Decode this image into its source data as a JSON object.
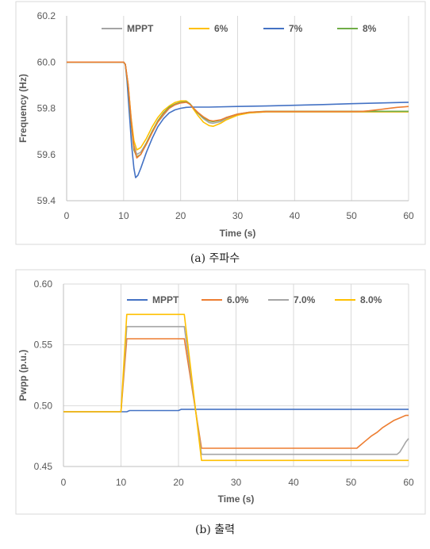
{
  "chart_data": [
    {
      "type": "line",
      "caption": "(a) 주파수",
      "xlabel": "Time (s)",
      "ylabel": "Frequency (Hz)",
      "xlim": [
        0,
        60
      ],
      "ylim": [
        59.4,
        60.2
      ],
      "xticks": [
        0,
        10,
        20,
        30,
        40,
        50,
        60
      ],
      "yticks": [
        "59.4",
        "59.6",
        "59.8",
        "60.0",
        "60.2"
      ],
      "grid": "vertical",
      "legend_position": "top",
      "series": [
        {
          "name": "MPPT",
          "color": "#a5a5a5",
          "x": [
            0,
            10,
            10.3,
            10.8,
            11.3,
            11.8,
            12.3,
            13,
            14,
            15,
            16,
            17,
            18,
            19,
            20,
            21,
            21.6,
            22.3,
            23,
            24,
            25,
            25.7,
            27,
            28,
            30,
            32,
            35,
            40,
            45,
            50,
            55,
            60
          ],
          "y": [
            60,
            60,
            59.99,
            59.9,
            59.76,
            59.64,
            59.6,
            59.61,
            59.65,
            59.7,
            59.74,
            59.77,
            59.8,
            59.815,
            59.825,
            59.828,
            59.82,
            59.8,
            59.78,
            59.755,
            59.738,
            59.735,
            59.742,
            59.755,
            59.772,
            59.78,
            59.785,
            59.785,
            59.785,
            59.785,
            59.785,
            59.785
          ]
        },
        {
          "name": "6%",
          "color": "#ffc000",
          "x": [
            0,
            10,
            10.3,
            10.8,
            11.3,
            11.8,
            12.3,
            13,
            14,
            15,
            16,
            17,
            18,
            19,
            20,
            21,
            21.6,
            22.3,
            23,
            24,
            25,
            25.7,
            27,
            28,
            30,
            32,
            35,
            40,
            45,
            50,
            55,
            60
          ],
          "y": [
            60,
            60,
            59.99,
            59.9,
            59.76,
            59.66,
            59.62,
            59.63,
            59.67,
            59.72,
            59.76,
            59.79,
            59.81,
            59.825,
            59.832,
            59.832,
            59.82,
            59.795,
            59.77,
            59.74,
            59.725,
            59.722,
            59.735,
            59.75,
            59.77,
            59.78,
            59.785,
            59.785,
            59.785,
            59.785,
            59.785,
            59.785
          ]
        },
        {
          "name": "7%",
          "color": "#4472c4",
          "x": [
            0,
            10,
            10.3,
            10.6,
            11,
            11.4,
            11.8,
            12.1,
            12.5,
            13,
            14,
            15,
            16,
            17,
            18,
            19,
            20,
            21,
            22,
            23,
            25,
            30,
            35,
            40,
            45,
            50,
            55,
            60
          ],
          "y": [
            60,
            60,
            59.99,
            59.92,
            59.78,
            59.64,
            59.54,
            59.5,
            59.51,
            59.54,
            59.61,
            59.67,
            59.72,
            59.755,
            59.78,
            59.793,
            59.8,
            59.804,
            59.805,
            59.805,
            59.805,
            59.808,
            59.81,
            59.813,
            59.816,
            59.82,
            59.823,
            59.826
          ]
        },
        {
          "name": "8%",
          "color": "#70ad47",
          "x": [
            0,
            10,
            10.3,
            10.8,
            11.3,
            11.8,
            12.3,
            13,
            14,
            15,
            16,
            17,
            18,
            19,
            20,
            21,
            21.6,
            22.3,
            23,
            24,
            25,
            25.7,
            27,
            28,
            30,
            32,
            35,
            40,
            45,
            50,
            55,
            60
          ],
          "y": [
            60,
            60,
            59.99,
            59.89,
            59.74,
            59.62,
            59.59,
            59.6,
            59.65,
            59.7,
            59.745,
            59.78,
            59.805,
            59.818,
            59.826,
            59.828,
            59.82,
            59.8,
            59.78,
            59.76,
            59.745,
            59.742,
            59.748,
            59.76,
            59.775,
            59.783,
            59.787,
            59.787,
            59.787,
            59.787,
            59.787,
            59.787
          ]
        },
        {
          "name": "",
          "color": "#ed7d31",
          "in_legend": false,
          "x": [
            0,
            10,
            10.3,
            10.8,
            11.3,
            11.8,
            12.3,
            13,
            14,
            15,
            16,
            17,
            18,
            19,
            20,
            21,
            21.6,
            22.3,
            23,
            24,
            25,
            25.7,
            27,
            28,
            30,
            32,
            35,
            40,
            45,
            50,
            51,
            52,
            53,
            54,
            55,
            56,
            57,
            58,
            59,
            60
          ],
          "y": [
            60,
            60,
            59.99,
            59.9,
            59.75,
            59.63,
            59.585,
            59.6,
            59.645,
            59.695,
            59.74,
            59.775,
            59.8,
            59.815,
            59.823,
            59.826,
            59.818,
            59.8,
            59.783,
            59.763,
            59.748,
            59.745,
            59.75,
            59.76,
            59.775,
            59.783,
            59.786,
            59.786,
            59.786,
            59.786,
            59.786,
            59.787,
            59.789,
            59.792,
            59.795,
            59.798,
            59.801,
            59.804,
            59.806,
            59.808
          ]
        }
      ]
    },
    {
      "type": "line",
      "caption": "(b) 출력",
      "xlabel": "Time (s)",
      "ylabel": "Pwpp (p.u.)",
      "xlim": [
        0,
        60
      ],
      "ylim": [
        0.45,
        0.6
      ],
      "xticks": [
        0,
        10,
        20,
        30,
        40,
        50,
        60
      ],
      "yticks": [
        "0.45",
        "0.50",
        "0.55",
        "0.60"
      ],
      "grid": "both",
      "legend_position": "top",
      "series": [
        {
          "name": "MPPT",
          "color": "#4472c4",
          "x": [
            0,
            10,
            11,
            11.5,
            20,
            20.5,
            60
          ],
          "y": [
            0.495,
            0.495,
            0.495,
            0.496,
            0.496,
            0.497,
            0.497
          ]
        },
        {
          "name": "6.0%",
          "color": "#ed7d31",
          "x": [
            0,
            10,
            11,
            21,
            24,
            51,
            51.5,
            52.5,
            53.5,
            54.5,
            55.5,
            56.5,
            57.5,
            58.5,
            59.5,
            60
          ],
          "y": [
            0.495,
            0.495,
            0.555,
            0.555,
            0.465,
            0.465,
            0.467,
            0.471,
            0.475,
            0.478,
            0.482,
            0.485,
            0.488,
            0.49,
            0.492,
            0.492
          ]
        },
        {
          "name": "7.0%",
          "color": "#a5a5a5",
          "x": [
            0,
            10,
            11,
            21,
            24,
            58,
            58.5,
            59,
            59.5,
            60
          ],
          "y": [
            0.495,
            0.495,
            0.565,
            0.565,
            0.46,
            0.46,
            0.462,
            0.466,
            0.47,
            0.473
          ]
        },
        {
          "name": "8.0%",
          "color": "#ffc000",
          "x": [
            0,
            10,
            11,
            21,
            24,
            60
          ],
          "y": [
            0.495,
            0.495,
            0.575,
            0.575,
            0.455,
            0.455
          ]
        }
      ]
    }
  ]
}
